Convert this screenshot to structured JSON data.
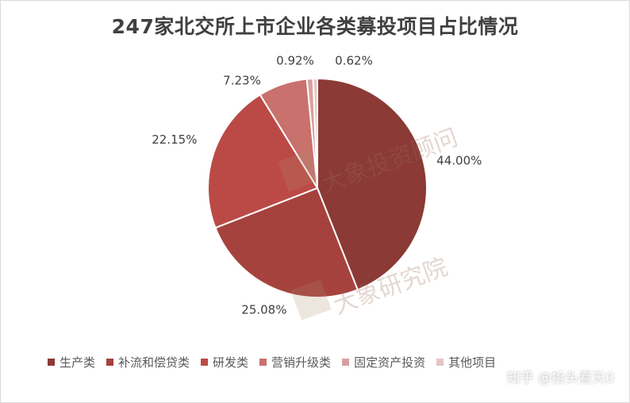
{
  "chart_data": {
    "type": "pie",
    "title": "247家北交所上市企业各类募投项目占比情况",
    "slices": [
      {
        "name": "生产类",
        "value": 44.0,
        "label": "44.00%",
        "color": "#8b3a35"
      },
      {
        "name": "补流和偿贷类",
        "value": 25.08,
        "label": "25.08%",
        "color": "#a6423d"
      },
      {
        "name": "研发类",
        "value": 22.15,
        "label": "22.15%",
        "color": "#bb4a46"
      },
      {
        "name": "营销升级类",
        "value": 7.23,
        "label": "7.23%",
        "color": "#c8716d"
      },
      {
        "name": "固定资产投资",
        "value": 0.92,
        "label": "0.92%",
        "color": "#d7a09e"
      },
      {
        "name": "其他项目",
        "value": 0.62,
        "label": "0.62%",
        "color": "#e6c5c4"
      }
    ],
    "legend_position": "bottom"
  },
  "watermarks": [
    "大象投资顾问",
    "大象研究院"
  ],
  "credit": "知乎 @拾头看天0"
}
